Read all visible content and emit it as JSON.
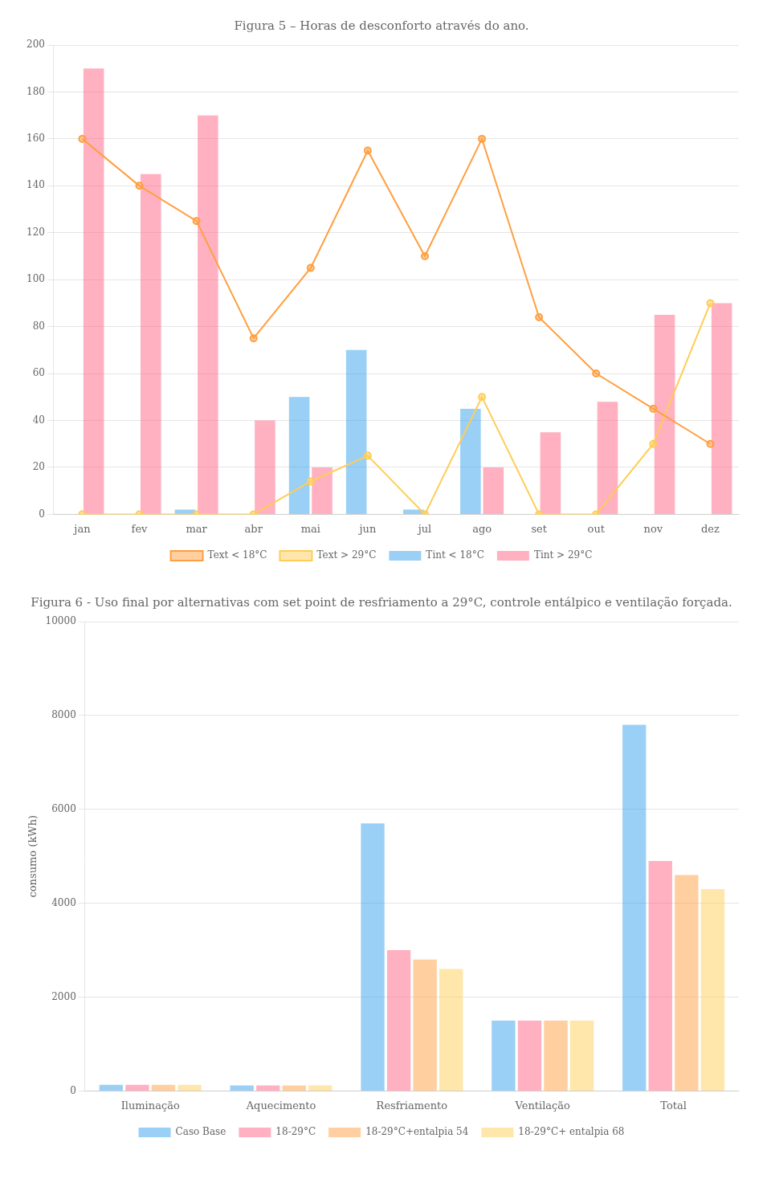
{
  "chart_data": [
    {
      "type": "bar",
      "title": "Figura 5 – Horas de desconforto através do ano.",
      "categories": [
        "jan",
        "fev",
        "mar",
        "abr",
        "mai",
        "jun",
        "jul",
        "ago",
        "set",
        "out",
        "nov",
        "dez"
      ],
      "series": [
        {
          "name": "Tint < 18°C",
          "type": "bar",
          "values": [
            0,
            0,
            2,
            0,
            50,
            70,
            2,
            45,
            0,
            0,
            0,
            0
          ]
        },
        {
          "name": "Tint > 29°C",
          "type": "bar",
          "values": [
            190,
            145,
            170,
            40,
            20,
            0,
            0,
            20,
            35,
            48,
            85,
            90
          ]
        },
        {
          "name": "Text < 18°C",
          "type": "line",
          "marker": "circle",
          "values": [
            160,
            140,
            125,
            75,
            105,
            155,
            110,
            160,
            84,
            60,
            45,
            30
          ]
        },
        {
          "name": "Text > 29°C",
          "type": "line",
          "marker": "circle",
          "values": [
            0,
            0,
            0,
            0,
            14,
            25,
            0,
            50,
            0,
            0,
            30,
            90
          ]
        }
      ],
      "ylim": [
        0,
        200
      ],
      "yticks": [
        0,
        20,
        40,
        60,
        80,
        100,
        120,
        140,
        160,
        180,
        200
      ],
      "grid": true,
      "legend": "bottom"
    },
    {
      "type": "bar",
      "title": "Figura 6 - Uso final por alternativas com set point de resfriamento a 29°C, controle entálpico e ventilação forçada.",
      "categories": [
        "Iluminação",
        "Aquecimento",
        "Resfriamento",
        "Ventilação",
        "Total"
      ],
      "y_label": "consumo (kWh)",
      "series": [
        {
          "name": "Caso Base",
          "values": [
            130,
            120,
            5700,
            1500,
            7800
          ]
        },
        {
          "name": "18-29°C",
          "values": [
            130,
            120,
            3000,
            1500,
            4900
          ]
        },
        {
          "name": "18-29°C+entalpia 54",
          "values": [
            130,
            120,
            2800,
            1500,
            4600
          ]
        },
        {
          "name": "18-29°C+ entalpia 68",
          "values": [
            130,
            120,
            2600,
            1500,
            4300
          ]
        }
      ],
      "ylim": [
        0,
        10000
      ],
      "yticks": [
        0,
        2000,
        4000,
        6000,
        8000,
        10000
      ],
      "grid": true,
      "legend": "bottom"
    }
  ]
}
